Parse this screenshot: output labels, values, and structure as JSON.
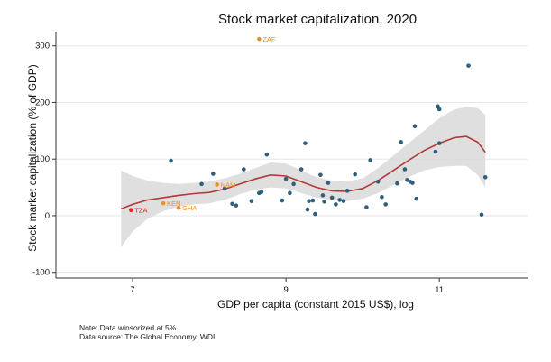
{
  "chart_data": {
    "type": "scatter",
    "title": "Stock market capitalization, 2020",
    "xlabel": "GDP per capita (constant 2015 US$), log",
    "ylabel": "Stock market capitalization (% of GDP)",
    "xlim": [
      6.0,
      12.15
    ],
    "ylim": [
      -110,
      325
    ],
    "x_ticks": [
      7,
      9,
      11
    ],
    "y_ticks": [
      -100,
      0,
      100,
      200,
      300
    ],
    "grid": "horizontal",
    "colors": {
      "points": "#2f5f7a",
      "highlight": "#f28e1c",
      "highlight_red": "#e8211f",
      "fit_line": "#b23a3a",
      "ci_band": "#d9d9d9"
    },
    "points": [
      {
        "x": 7.5,
        "y": 97
      },
      {
        "x": 7.9,
        "y": 56
      },
      {
        "x": 8.05,
        "y": 74
      },
      {
        "x": 8.2,
        "y": 48
      },
      {
        "x": 8.3,
        "y": 21
      },
      {
        "x": 8.35,
        "y": 18
      },
      {
        "x": 8.45,
        "y": 82
      },
      {
        "x": 8.55,
        "y": 26
      },
      {
        "x": 8.65,
        "y": 40
      },
      {
        "x": 8.68,
        "y": 42
      },
      {
        "x": 8.75,
        "y": 108
      },
      {
        "x": 8.95,
        "y": 27
      },
      {
        "x": 9.0,
        "y": 65
      },
      {
        "x": 9.05,
        "y": 40
      },
      {
        "x": 9.1,
        "y": 56
      },
      {
        "x": 9.2,
        "y": 82
      },
      {
        "x": 9.25,
        "y": 128
      },
      {
        "x": 9.28,
        "y": 11
      },
      {
        "x": 9.3,
        "y": 26
      },
      {
        "x": 9.35,
        "y": 27
      },
      {
        "x": 9.38,
        "y": 3
      },
      {
        "x": 9.45,
        "y": 72
      },
      {
        "x": 9.48,
        "y": 36
      },
      {
        "x": 9.5,
        "y": 25
      },
      {
        "x": 9.55,
        "y": 58
      },
      {
        "x": 9.6,
        "y": 32
      },
      {
        "x": 9.65,
        "y": 20
      },
      {
        "x": 9.7,
        "y": 28
      },
      {
        "x": 9.75,
        "y": 26
      },
      {
        "x": 9.8,
        "y": 44
      },
      {
        "x": 9.9,
        "y": 73
      },
      {
        "x": 10.05,
        "y": 15
      },
      {
        "x": 10.1,
        "y": 98
      },
      {
        "x": 10.2,
        "y": 60
      },
      {
        "x": 10.25,
        "y": 33
      },
      {
        "x": 10.3,
        "y": 20
      },
      {
        "x": 10.45,
        "y": 57
      },
      {
        "x": 10.5,
        "y": 130
      },
      {
        "x": 10.55,
        "y": 82
      },
      {
        "x": 10.58,
        "y": 63
      },
      {
        "x": 10.62,
        "y": 60
      },
      {
        "x": 10.65,
        "y": 58
      },
      {
        "x": 10.68,
        "y": 158
      },
      {
        "x": 10.7,
        "y": 30
      },
      {
        "x": 10.95,
        "y": 113
      },
      {
        "x": 11.0,
        "y": 128
      },
      {
        "x": 10.98,
        "y": 193
      },
      {
        "x": 11.0,
        "y": 188
      },
      {
        "x": 11.38,
        "y": 265
      },
      {
        "x": 11.55,
        "y": 2
      },
      {
        "x": 11.6,
        "y": 68
      }
    ],
    "labeled_points": [
      {
        "label": "ZAF",
        "x": 8.65,
        "y": 312,
        "color": "#f28e1c"
      },
      {
        "label": "TZA",
        "x": 6.98,
        "y": 10,
        "color": "#e8211f"
      },
      {
        "label": "KEN",
        "x": 7.4,
        "y": 22,
        "color": "#f28e1c"
      },
      {
        "label": "GHA",
        "x": 7.6,
        "y": 14,
        "color": "#f28e1c"
      },
      {
        "label": "NAM",
        "x": 8.1,
        "y": 55,
        "color": "#f28e1c"
      }
    ],
    "fit_line": {
      "x": [
        6.85,
        7.0,
        7.2,
        7.4,
        7.6,
        7.8,
        8.0,
        8.2,
        8.4,
        8.6,
        8.8,
        9.0,
        9.2,
        9.4,
        9.6,
        9.8,
        10.0,
        10.2,
        10.4,
        10.6,
        10.8,
        11.0,
        11.2,
        11.35,
        11.5,
        11.6
      ],
      "y": [
        12,
        20,
        28,
        32,
        36,
        39,
        41,
        47,
        56,
        65,
        72,
        70,
        60,
        50,
        44,
        43,
        48,
        62,
        80,
        98,
        115,
        128,
        138,
        140,
        130,
        112
      ]
    },
    "ci_band": {
      "x": [
        6.85,
        7.0,
        7.2,
        7.4,
        7.6,
        7.8,
        8.0,
        8.2,
        8.4,
        8.6,
        8.8,
        9.0,
        9.2,
        9.4,
        9.6,
        9.8,
        10.0,
        10.2,
        10.4,
        10.6,
        10.8,
        11.0,
        11.2,
        11.35,
        11.5,
        11.6
      ],
      "upper": [
        80,
        70,
        62,
        58,
        56,
        58,
        60,
        66,
        74,
        84,
        94,
        92,
        80,
        68,
        62,
        60,
        66,
        84,
        106,
        128,
        150,
        172,
        188,
        192,
        190,
        178
      ],
      "lower": [
        -55,
        -28,
        -5,
        8,
        16,
        20,
        22,
        28,
        38,
        46,
        50,
        48,
        40,
        32,
        28,
        26,
        30,
        40,
        54,
        68,
        80,
        86,
        88,
        88,
        72,
        50
      ]
    }
  },
  "notes": {
    "line1": "Note: Data winsorized at 5%",
    "line2": "Data source: The Global Economy, WDI"
  }
}
